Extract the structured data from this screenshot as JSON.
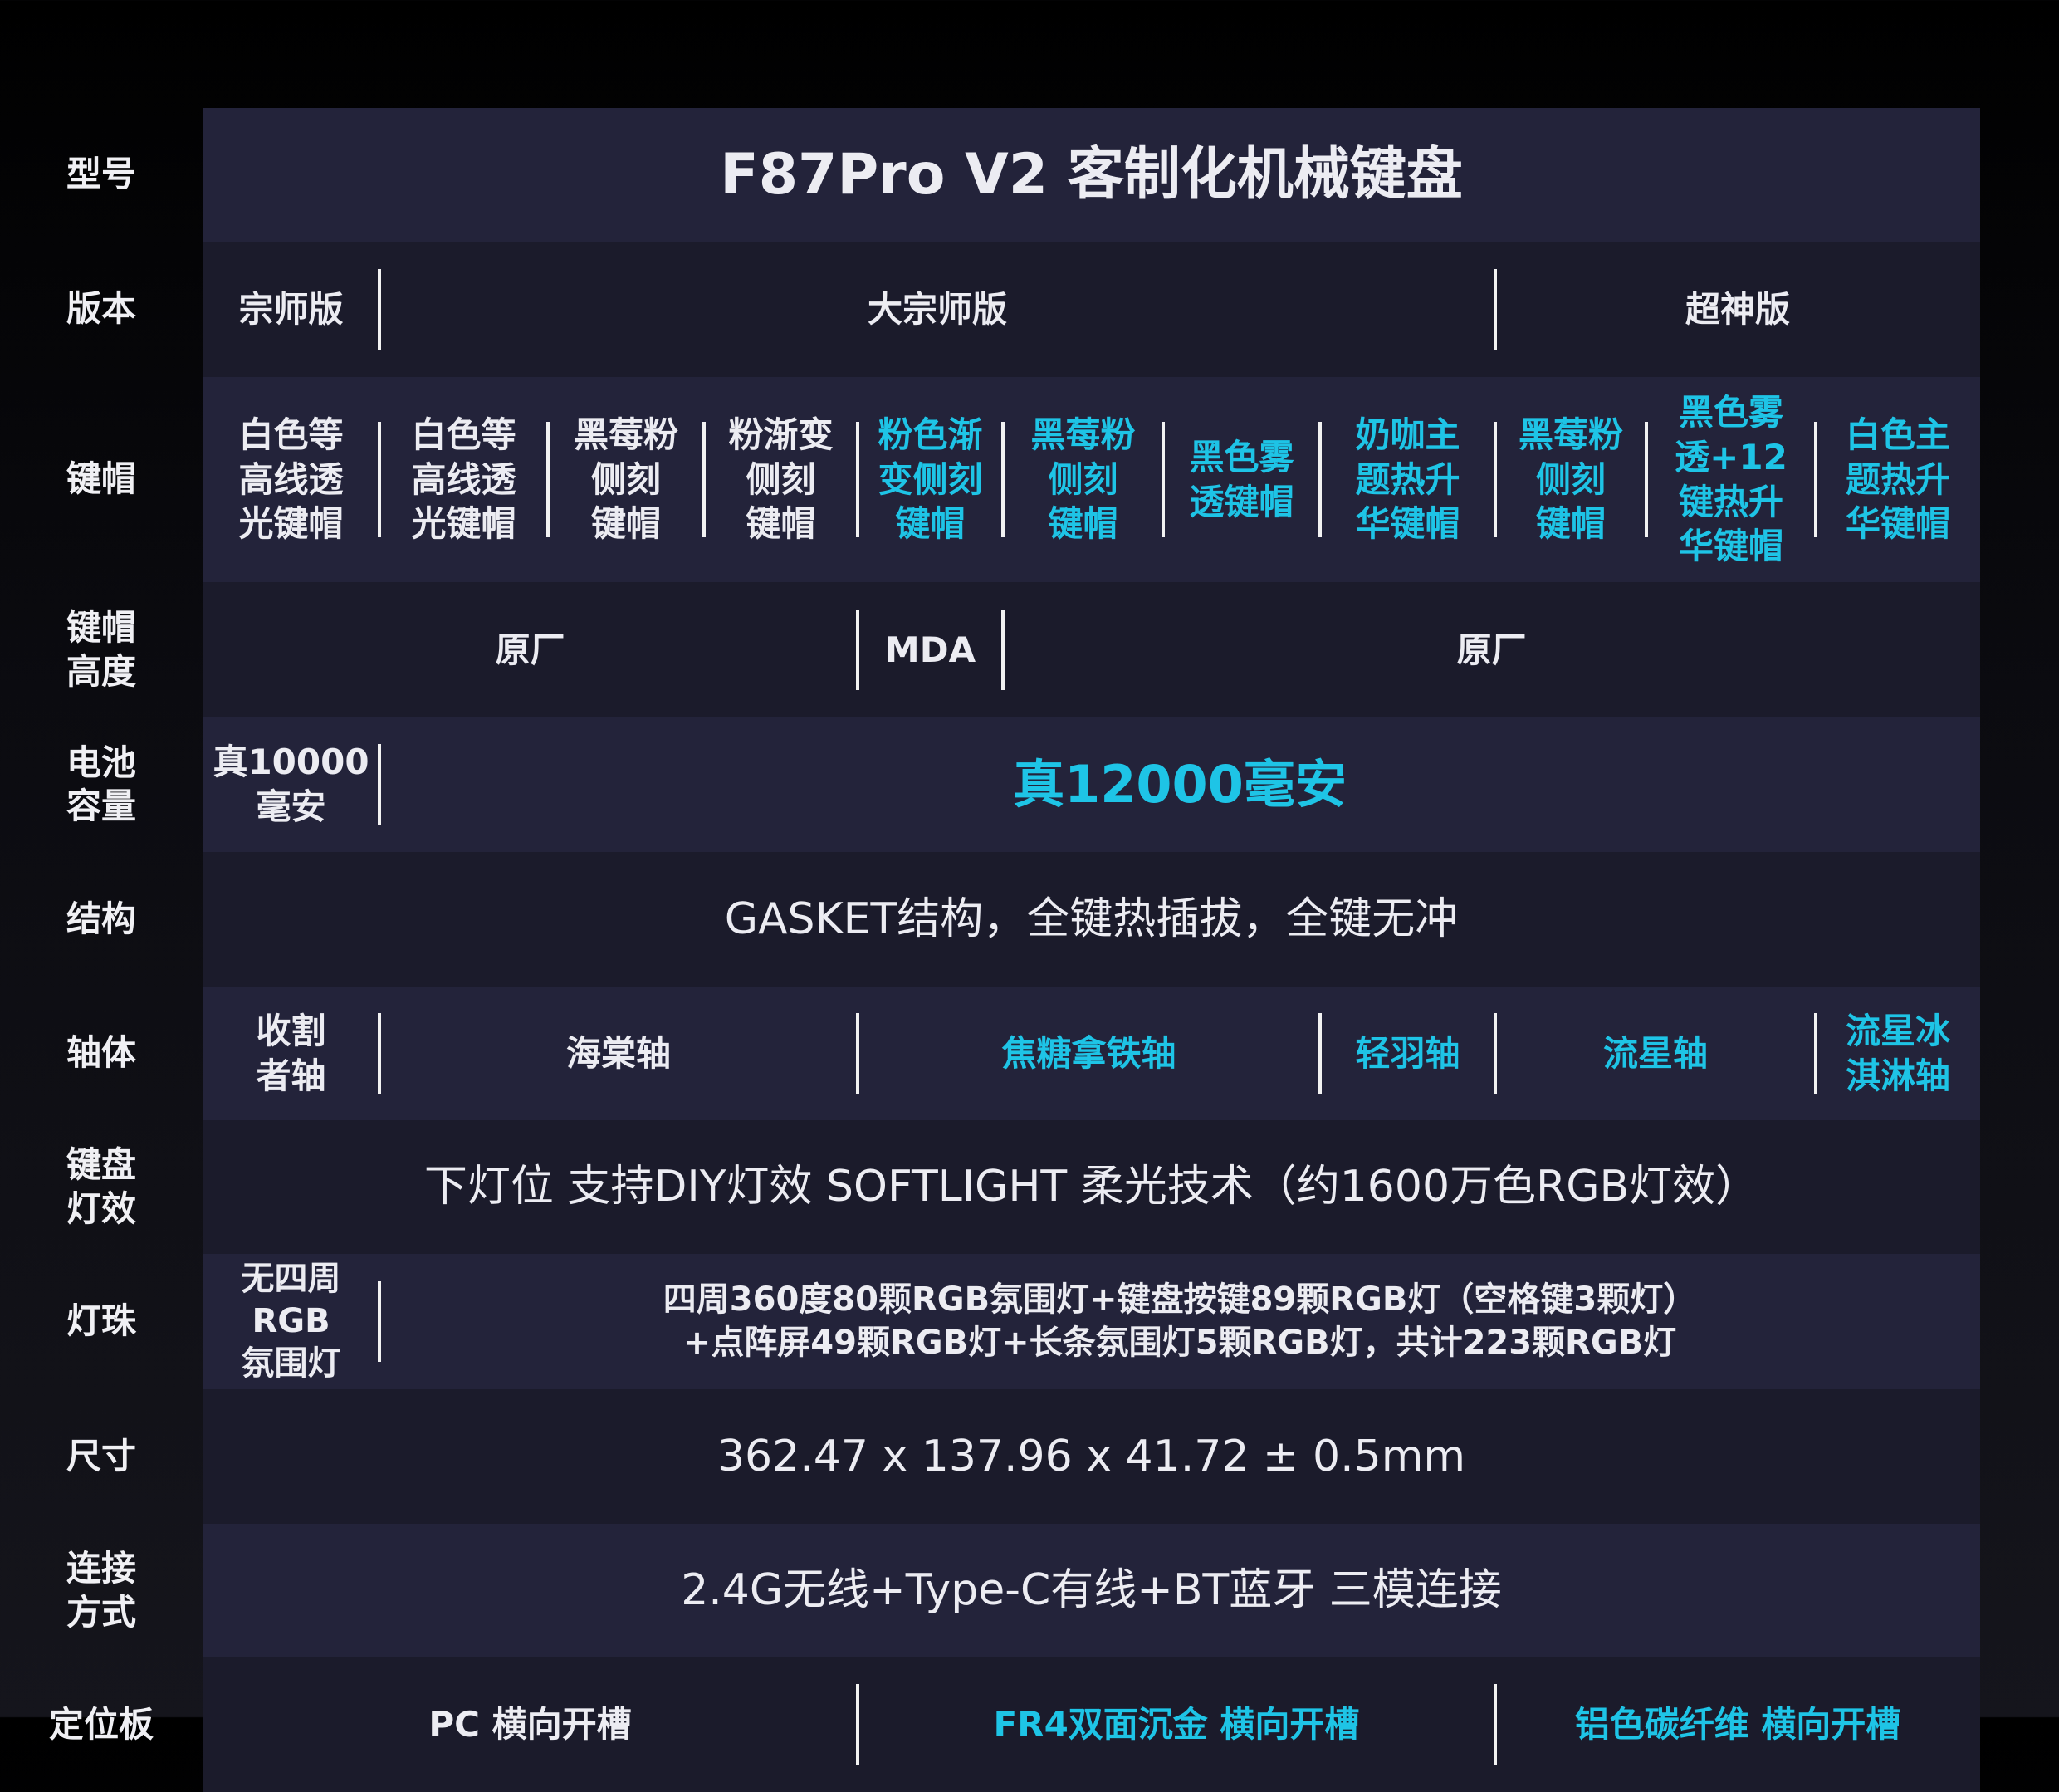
{
  "colors": {
    "background": "#000000",
    "row_light": "#23233a",
    "row_dark": "#1b1b2b",
    "text": "#ececf2",
    "accent_cyan": "#1ec4e6"
  },
  "rows": [
    {
      "label": "型号",
      "cells": [
        {
          "text": "F87Pro V2 客制化机械键盘",
          "cyan": false
        }
      ]
    },
    {
      "label": "版本",
      "cells": [
        {
          "text": "宗师版",
          "cyan": false
        },
        {
          "text": "大宗师版",
          "cyan": false
        },
        {
          "text": "超神版",
          "cyan": false
        }
      ]
    },
    {
      "label": "键帽",
      "cells": [
        {
          "text": "白色等\n高线透\n光键帽",
          "cyan": false
        },
        {
          "text": "白色等\n高线透\n光键帽",
          "cyan": false
        },
        {
          "text": "黑莓粉\n侧刻\n键帽",
          "cyan": false
        },
        {
          "text": "粉渐变\n侧刻\n键帽",
          "cyan": false
        },
        {
          "text": "粉色渐\n变侧刻\n键帽",
          "cyan": true
        },
        {
          "text": "黑莓粉\n侧刻\n键帽",
          "cyan": true
        },
        {
          "text": "黑色雾\n透键帽",
          "cyan": true
        },
        {
          "text": "奶咖主\n题热升\n华键帽",
          "cyan": true
        },
        {
          "text": "黑莓粉\n侧刻\n键帽",
          "cyan": true
        },
        {
          "text": "黑色雾\n透+12\n键热升\n华键帽",
          "cyan": true
        },
        {
          "text": "白色主\n题热升\n华键帽",
          "cyan": true
        }
      ]
    },
    {
      "label": "键帽\n高度",
      "cells": [
        {
          "text": "原厂",
          "cyan": false
        },
        {
          "text": "MDA",
          "cyan": false
        },
        {
          "text": "原厂",
          "cyan": false
        }
      ]
    },
    {
      "label": "电池\n容量",
      "cells": [
        {
          "text": "真10000\n毫安",
          "cyan": false
        },
        {
          "text": "真12000毫安",
          "cyan": true
        }
      ]
    },
    {
      "label": "结构",
      "cells": [
        {
          "text": "GASKET结构，全键热插拔，全键无冲",
          "cyan": false
        }
      ]
    },
    {
      "label": "轴体",
      "cells": [
        {
          "text": "收割\n者轴",
          "cyan": false
        },
        {
          "text": "海棠轴",
          "cyan": false
        },
        {
          "text": "焦糖拿铁轴",
          "cyan": true
        },
        {
          "text": "轻羽轴",
          "cyan": true
        },
        {
          "text": "流星轴",
          "cyan": true
        },
        {
          "text": "流星冰\n淇淋轴",
          "cyan": true
        }
      ]
    },
    {
      "label": "键盘\n灯效",
      "cells": [
        {
          "text": "下灯位  支持DIY灯效  SOFTLIGHT 柔光技术（约1600万色RGB灯效）",
          "cyan": false
        }
      ]
    },
    {
      "label": "灯珠",
      "cells": [
        {
          "text": "无四周\nRGB\n氛围灯",
          "cyan": false
        },
        {
          "text": "四周360度80颗RGB氛围灯+键盘按键89颗RGB灯（空格键3颗灯）\n+点阵屏49颗RGB灯+长条氛围灯5颗RGB灯，共计223颗RGB灯",
          "cyan": false
        }
      ]
    },
    {
      "label": "尺寸",
      "cells": [
        {
          "text": "362.47 x 137.96 x 41.72 ± 0.5mm",
          "cyan": false
        }
      ]
    },
    {
      "label": "连接\n方式",
      "cells": [
        {
          "text": "2.4G无线+Type-C有线+BT蓝牙  三模连接",
          "cyan": false
        }
      ]
    },
    {
      "label": "定位板",
      "cells": [
        {
          "text": "PC  横向开槽",
          "cyan": false
        },
        {
          "text": "FR4双面沉金  横向开槽",
          "cyan": true
        },
        {
          "text": "铝色碳纤维  横向开槽",
          "cyan": true
        }
      ]
    }
  ]
}
